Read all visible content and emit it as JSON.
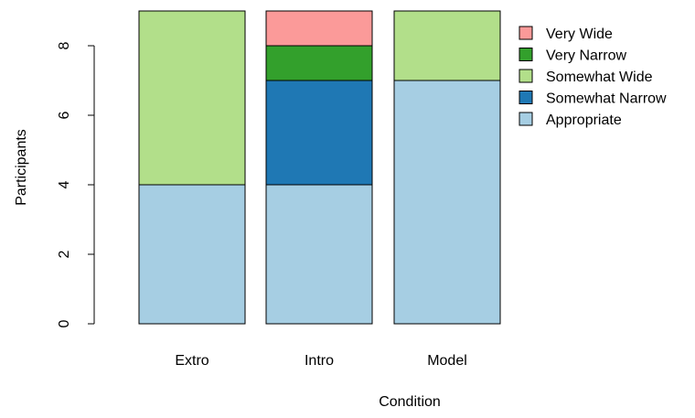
{
  "chart_data": {
    "type": "bar",
    "stacked": true,
    "title": "",
    "xlabel": "Condition",
    "ylabel": "Participants",
    "categories": [
      "Extro",
      "Intro",
      "Model"
    ],
    "ylim": [
      0,
      9
    ],
    "yticks": [
      0,
      2,
      4,
      6,
      8
    ],
    "grid": false,
    "legend_position": "top-right",
    "series": [
      {
        "name": "Appropriate",
        "color": "#A6CEE3",
        "values": [
          4,
          4,
          7
        ]
      },
      {
        "name": "Somewhat Narrow",
        "color": "#1F78B4",
        "values": [
          0,
          3,
          0
        ]
      },
      {
        "name": "Somewhat Wide",
        "color": "#B2DF8A",
        "values": [
          5,
          0,
          2
        ]
      },
      {
        "name": "Very Narrow",
        "color": "#33A02C",
        "values": [
          0,
          1,
          0
        ]
      },
      {
        "name": "Very Wide",
        "color": "#FB9A99",
        "values": [
          0,
          1,
          0
        ]
      }
    ]
  }
}
